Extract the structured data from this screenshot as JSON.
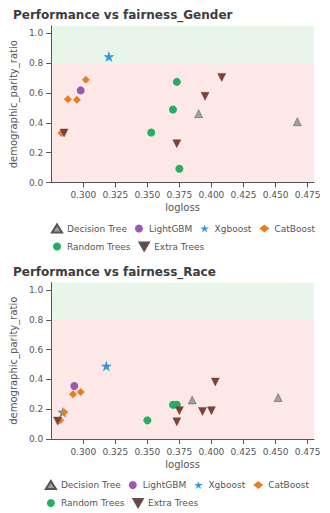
{
  "chart_data": [
    {
      "type": "scatter",
      "title": "Performance vs fairness_Gender",
      "xlabel": "logloss",
      "ylabel": "demographic_parity_ratio",
      "xlim": [
        0.275,
        0.48
      ],
      "ylim": [
        0.0,
        1.05
      ],
      "xticks": [
        {
          "value": 0.3,
          "label": "0.300"
        },
        0.325,
        {
          "value": 0.35,
          "label": "0.350"
        },
        0.375,
        {
          "value": 0.4,
          "label": "0.400"
        },
        0.425,
        {
          "value": 0.45,
          "label": "0.450"
        },
        0.475
      ],
      "yticks": [
        {
          "value": 0.0,
          "label": "0.0"
        },
        0.2,
        0.4,
        0.6,
        0.8,
        {
          "value": 1.0,
          "label": "1.0"
        }
      ],
      "grid": false,
      "legend": "lower left",
      "bands": [
        {
          "range": [
            0.0,
            0.8
          ],
          "color": "#fde8e8"
        },
        {
          "range": [
            0.8,
            1.05
          ],
          "color": "#e8f5e9"
        }
      ],
      "series": [
        {
          "name": "Decision Tree",
          "color": "#a0a0a0",
          "marker": "triangle-up",
          "x": [
            0.39,
            0.467
          ],
          "values": [
            0.462,
            0.408
          ]
        },
        {
          "name": "LightGBM",
          "color": "#9b59b6",
          "marker": "circle",
          "x": [
            0.298
          ],
          "values": [
            0.618
          ]
        },
        {
          "name": "Xgboost",
          "color": "#3498db",
          "marker": "star",
          "x": [
            0.32
          ],
          "values": [
            0.845
          ]
        },
        {
          "name": "CatBoost",
          "color": "#e67e22",
          "marker": "diamond",
          "x": [
            0.288,
            0.295,
            0.302,
            0.283
          ],
          "values": [
            0.558,
            0.555,
            0.69,
            0.332
          ]
        },
        {
          "name": "Random Trees",
          "color": "#27ae60",
          "marker": "circle",
          "x": [
            0.353,
            0.37,
            0.373,
            0.375
          ],
          "values": [
            0.336,
            0.49,
            0.675,
            0.092
          ]
        },
        {
          "name": "Extra Trees",
          "color": "#8b3a2f",
          "marker": "triangle-down",
          "x": [
            0.285,
            0.373,
            0.395,
            0.408
          ],
          "values": [
            0.332,
            0.26,
            0.578,
            0.705
          ]
        }
      ]
    },
    {
      "type": "scatter",
      "title": "Performance vs fairness_Race",
      "xlabel": "logloss",
      "ylabel": "demographic_parity_ratio",
      "xlim": [
        0.275,
        0.48
      ],
      "ylim": [
        0.0,
        1.05
      ],
      "xticks": [
        {
          "value": 0.3,
          "label": "0.300"
        },
        0.325,
        {
          "value": 0.35,
          "label": "0.350"
        },
        0.375,
        {
          "value": 0.4,
          "label": "0.400"
        },
        0.425,
        {
          "value": 0.45,
          "label": "0.450"
        },
        0.475
      ],
      "yticks": [
        {
          "value": 0.0,
          "label": "0.0"
        },
        0.2,
        0.4,
        0.6,
        0.8,
        {
          "value": 1.0,
          "label": "1.0"
        }
      ],
      "grid": false,
      "legend": "lower right",
      "bands": [
        {
          "range": [
            0.0,
            0.8
          ],
          "color": "#fde8e8"
        },
        {
          "range": [
            0.8,
            1.05
          ],
          "color": "#e8f5e9"
        }
      ],
      "series": [
        {
          "name": "Decision Tree",
          "color": "#a0a0a0",
          "marker": "triangle-up",
          "x": [
            0.385,
            0.452
          ],
          "values": [
            0.262,
            0.278
          ]
        },
        {
          "name": "LightGBM",
          "color": "#9b59b6",
          "marker": "circle",
          "x": [
            0.293
          ],
          "values": [
            0.355
          ]
        },
        {
          "name": "Xgboost",
          "color": "#3498db",
          "marker": "star",
          "x": [
            0.318,
            0.284
          ],
          "values": [
            0.49,
            0.18
          ]
        },
        {
          "name": "CatBoost",
          "color": "#e67e22",
          "marker": "diamond",
          "x": [
            0.285,
            0.292,
            0.298,
            0.282
          ],
          "values": [
            0.18,
            0.3,
            0.315,
            0.125
          ]
        },
        {
          "name": "Random Trees",
          "color": "#27ae60",
          "marker": "circle",
          "x": [
            0.35,
            0.37,
            0.373
          ],
          "values": [
            0.125,
            0.23,
            0.23
          ]
        },
        {
          "name": "Extra Trees",
          "color": "#8b3a2f",
          "marker": "triangle-down",
          "x": [
            0.28,
            0.373,
            0.375,
            0.393,
            0.4,
            0.403
          ],
          "values": [
            0.12,
            0.115,
            0.19,
            0.185,
            0.19,
            0.382
          ]
        }
      ]
    }
  ]
}
